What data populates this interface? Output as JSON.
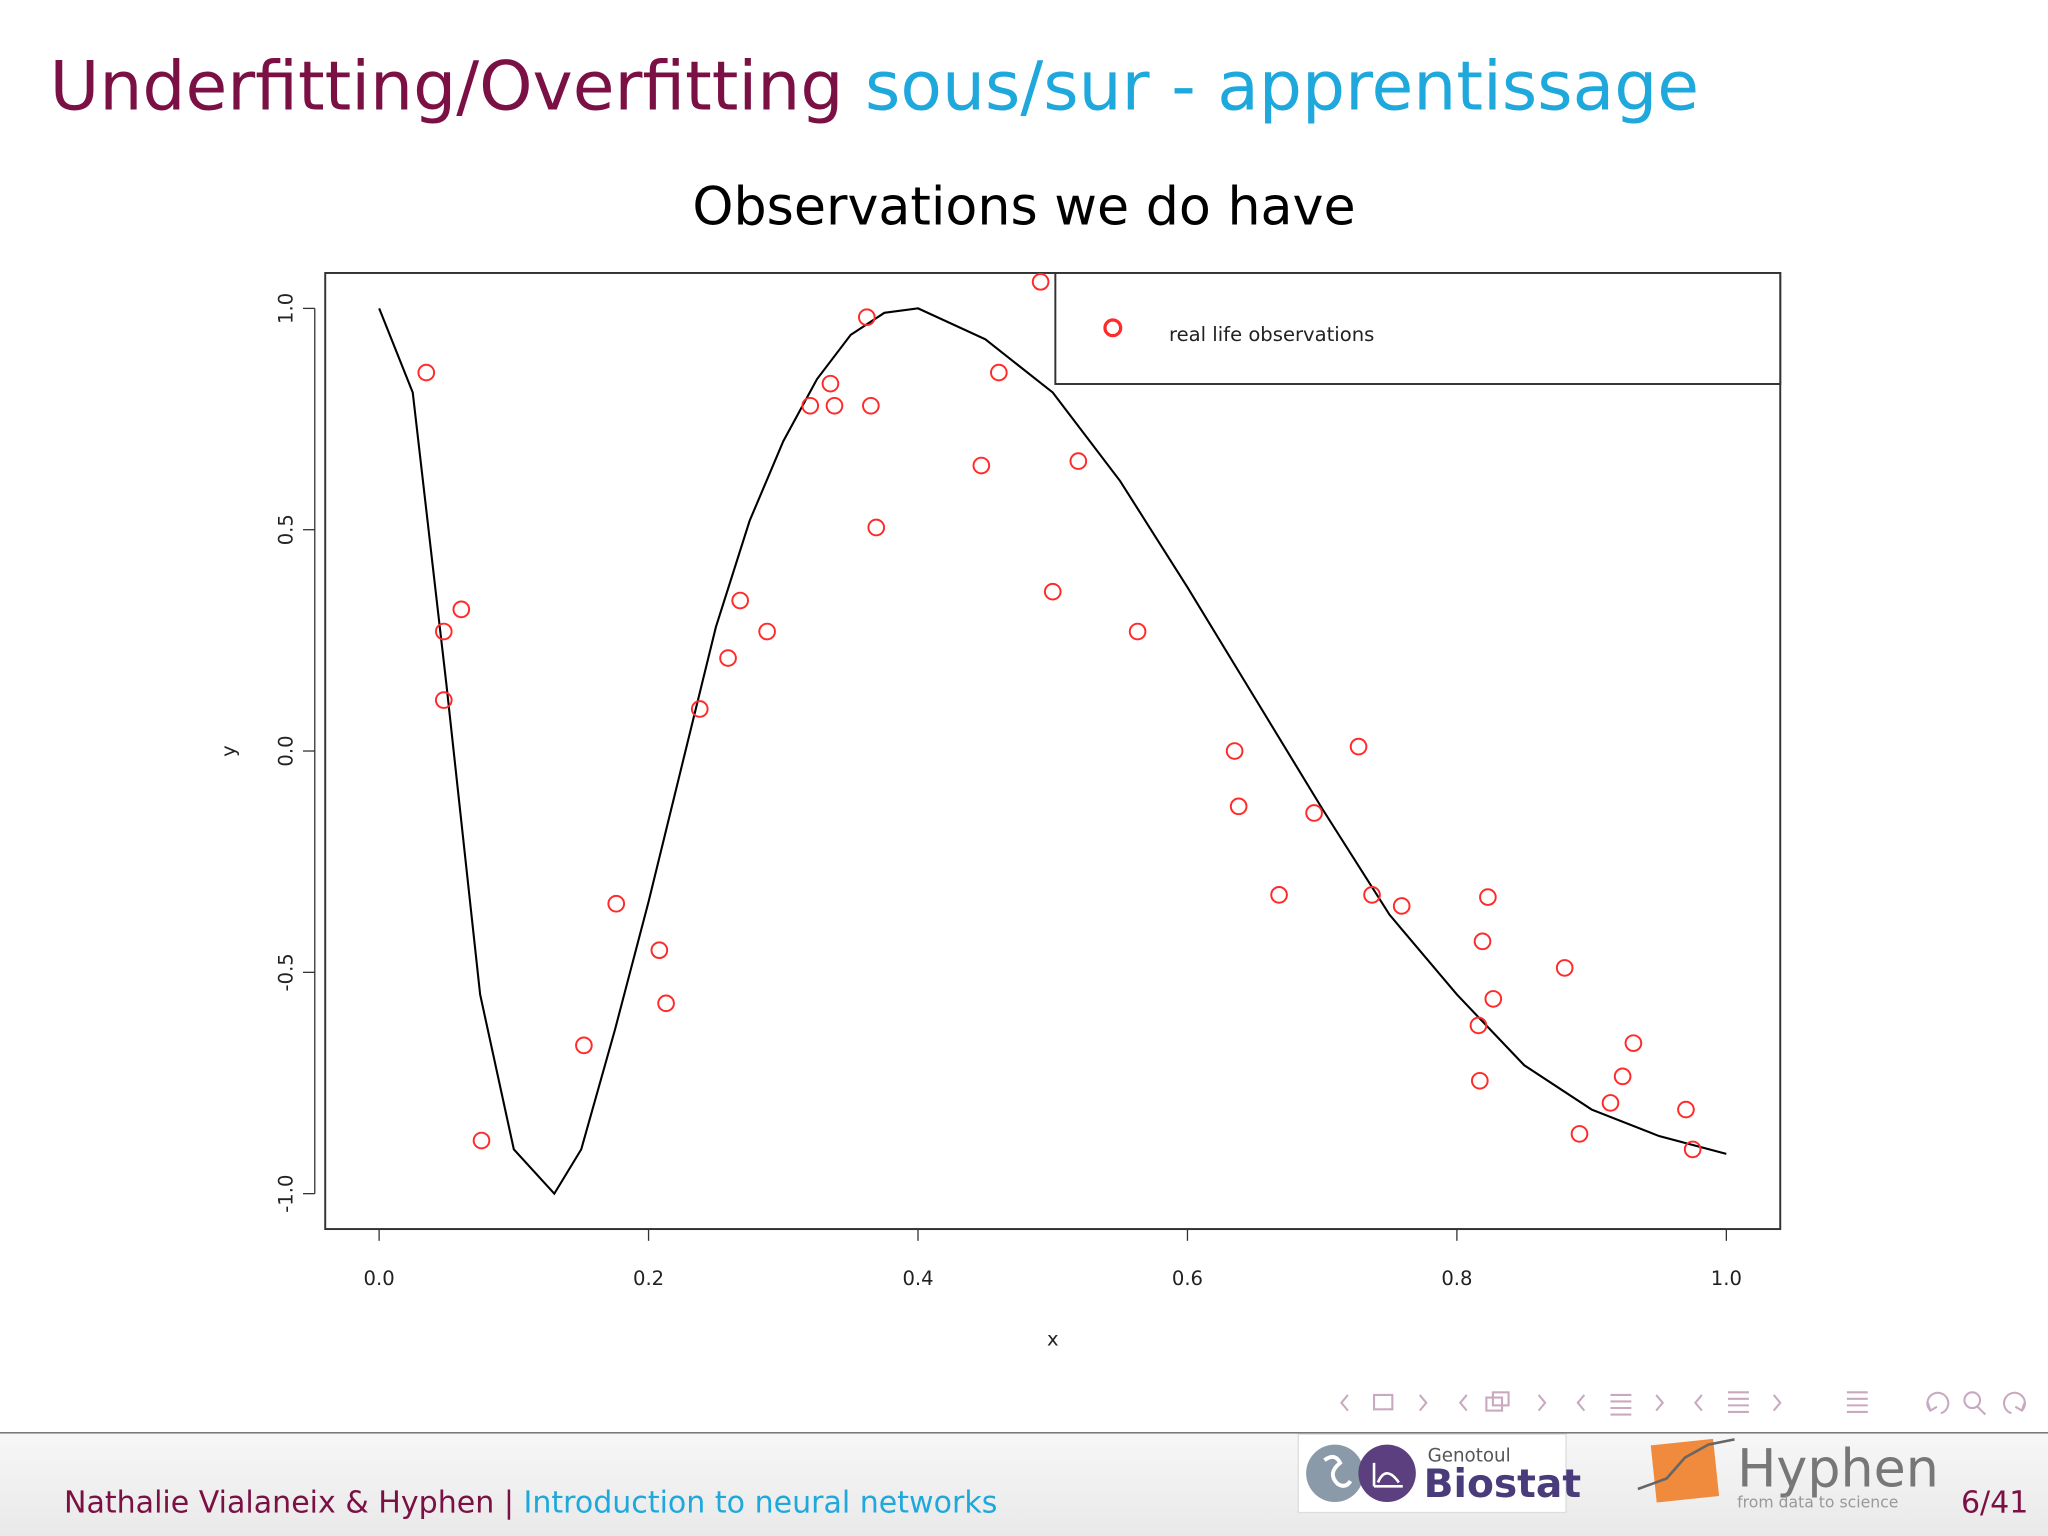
{
  "slide": {
    "title_main": "Underfitting/Overfitting",
    "title_sub": "sous/sur - apprentissage",
    "footer_author": "Nathalie Vialaneix & Hyphen",
    "footer_separator": "|",
    "footer_talk": "Introduction to neural networks",
    "page": "6/41",
    "logo1_top": "Genotoul",
    "logo1_main": "Biostat",
    "logo2_main": "Hyphen",
    "logo2_tagline": "from data to science"
  },
  "chart_data": {
    "type": "scatter",
    "title": "Observations we do have",
    "x_label": "x",
    "y_label": "y",
    "xlim": [
      -0.04,
      1.04
    ],
    "ylim": [
      -1.08,
      1.08
    ],
    "xticks": [
      {
        "value": 0,
        "label": "0.0"
      },
      0.2,
      0.4,
      0.6,
      0.8,
      {
        "value": 1,
        "label": "1.0"
      }
    ],
    "yticks": [
      {
        "value": -1,
        "label": "-1.0"
      },
      -0.5,
      {
        "value": 0,
        "label": "0.0"
      },
      0.5,
      {
        "value": 1,
        "label": "1.0"
      }
    ],
    "legend": "top-right",
    "series": [
      {
        "name": "real life observations",
        "color": "#ff2a2a",
        "x": [
          0.035,
          0.048,
          0.048,
          0.061,
          0.076,
          0.152,
          0.176,
          0.208,
          0.213,
          0.238,
          0.259,
          0.268,
          0.288,
          0.32,
          0.335,
          0.338,
          0.362,
          0.365,
          0.369,
          0.447,
          0.46,
          0.491,
          0.5,
          0.519,
          0.563,
          0.635,
          0.638,
          0.668,
          0.694,
          0.727,
          0.737,
          0.759,
          0.823,
          0.819,
          0.827,
          0.816,
          0.817,
          0.88,
          0.891,
          0.914,
          0.923,
          0.931,
          0.97,
          0.975
        ],
        "values": [
          0.855,
          0.27,
          0.115,
          0.32,
          -0.88,
          -0.665,
          -0.345,
          -0.45,
          -0.57,
          0.095,
          0.21,
          0.34,
          0.27,
          0.78,
          0.83,
          0.78,
          0.98,
          0.78,
          0.505,
          0.645,
          0.855,
          1.06,
          0.36,
          0.655,
          0.27,
          0.0,
          -0.125,
          -0.325,
          -0.14,
          0.01,
          -0.325,
          -0.35,
          -0.33,
          -0.43,
          -0.56,
          -0.62,
          -0.745,
          -0.49,
          -0.865,
          -0.795,
          -0.735,
          -0.66,
          -0.81,
          -0.9
        ]
      }
    ],
    "curve": {
      "color": "#000000",
      "x": [
        0,
        0.025,
        0.05,
        0.075,
        0.1,
        0.13,
        0.15,
        0.175,
        0.2,
        0.225,
        0.25,
        0.275,
        0.3,
        0.325,
        0.35,
        0.375,
        0.4,
        0.45,
        0.5,
        0.55,
        0.6,
        0.65,
        0.7,
        0.75,
        0.8,
        0.85,
        0.9,
        0.95,
        1
      ],
      "values": [
        1,
        0.81,
        0.15,
        -0.55,
        -0.9,
        -1,
        -0.9,
        -0.63,
        -0.34,
        -0.03,
        0.28,
        0.52,
        0.7,
        0.84,
        0.94,
        0.99,
        1,
        0.93,
        0.81,
        0.61,
        0.37,
        0.12,
        -0.13,
        -0.37,
        -0.55,
        -0.71,
        -0.81,
        -0.87,
        -0.91
      ]
    }
  }
}
